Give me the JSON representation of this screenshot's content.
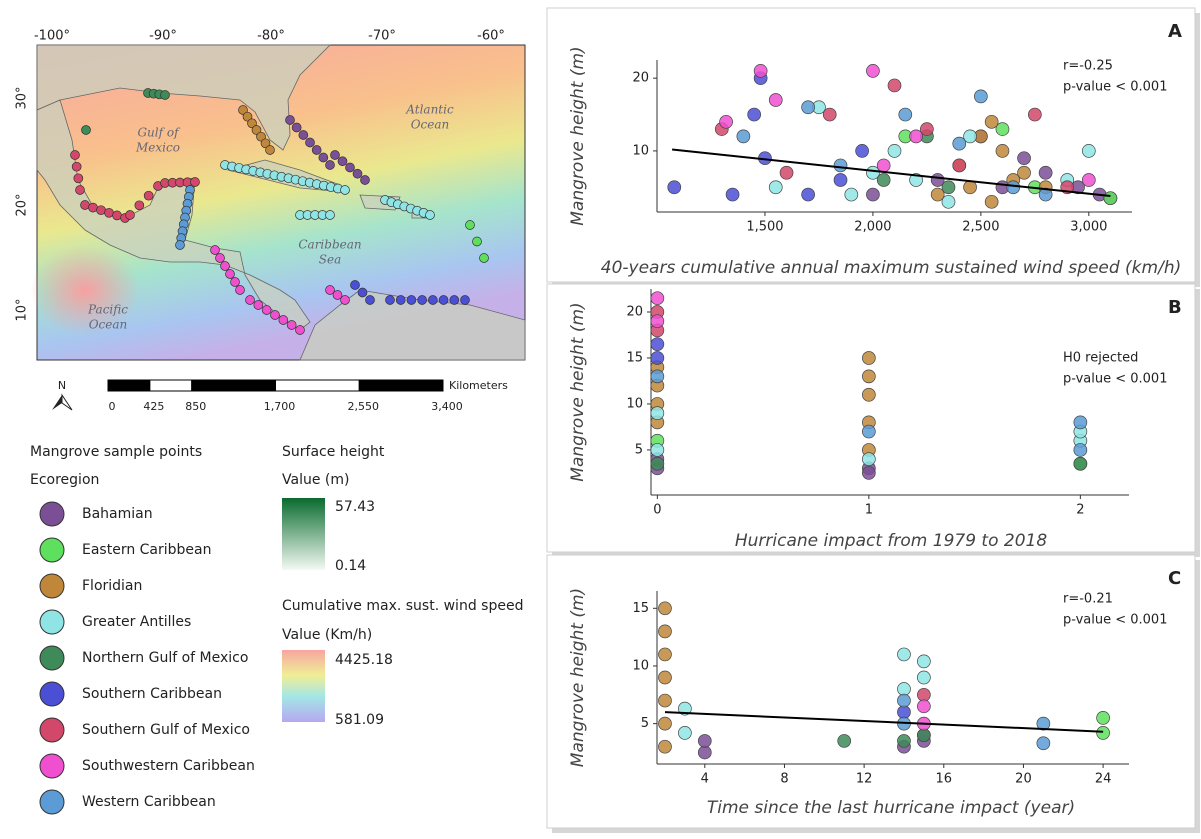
{
  "chart_data": [
    {
      "type": "scatter",
      "panel": "A",
      "xlabel": "40-years cumulative annual maximum sustained wind speed (km/h)",
      "ylabel": "Mangrove height (m)",
      "annotations": [
        "r=-0.25",
        "p-value < 0.001"
      ],
      "xlim": [
        1000,
        3200
      ],
      "ylim": [
        1.6,
        22.5
      ],
      "xticks": [
        {
          "value": 1500,
          "label": "1,500"
        },
        {
          "value": 2000,
          "label": "2,000"
        },
        {
          "value": 2500,
          "label": "2,500"
        },
        {
          "value": 3000,
          "label": "3,000"
        }
      ],
      "yticks": [
        10,
        20
      ],
      "series": [
        {
          "name": "Bahamian",
          "color": "#7b4f96",
          "x": [
            2000,
            2300,
            2600,
            2800,
            2950,
            3050,
            3100,
            2700,
            2500
          ],
          "values": [
            4,
            6,
            5,
            7,
            5,
            4,
            3.5,
            9,
            12
          ]
        },
        {
          "name": "Eastern Caribbean",
          "color": "#5ee05e",
          "x": [
            2150,
            2600,
            2750,
            3100
          ],
          "values": [
            12,
            13,
            5,
            3.5
          ]
        },
        {
          "name": "Floridian",
          "color": "#c0873a",
          "x": [
            2300,
            2400,
            2500,
            2550,
            2600,
            2650,
            2550,
            2450,
            2700,
            2800
          ],
          "values": [
            4,
            8,
            12,
            14,
            10,
            6,
            3,
            5,
            7,
            5
          ]
        },
        {
          "name": "Greater Antilles",
          "color": "#8fe5e5",
          "x": [
            1550,
            1750,
            1900,
            2000,
            2100,
            2200,
            2350,
            2450,
            2900,
            3000
          ],
          "values": [
            5,
            16,
            4,
            7,
            10,
            6,
            3,
            12,
            6,
            10
          ]
        },
        {
          "name": "Northern Gulf of Mexico",
          "color": "#3e8a58",
          "x": [
            2050,
            2250,
            2350
          ],
          "values": [
            6,
            12,
            5
          ]
        },
        {
          "name": "Southern Caribbean",
          "color": "#4b4fd6",
          "x": [
            1080,
            1350,
            1450,
            1480,
            1500,
            1700,
            1850,
            1950
          ],
          "values": [
            5,
            4,
            15,
            20,
            9,
            4,
            6,
            10
          ]
        },
        {
          "name": "Southern Gulf of Mexico",
          "color": "#d2476a",
          "x": [
            1300,
            1600,
            1800,
            2100,
            2250,
            2400,
            2750,
            2900
          ],
          "values": [
            13,
            7,
            15,
            19,
            13,
            8,
            15,
            5
          ]
        },
        {
          "name": "Southwestern Caribbean",
          "color": "#f050d0",
          "x": [
            1320,
            1480,
            1550,
            2000,
            2200,
            2050,
            3000
          ],
          "values": [
            14,
            21,
            17,
            21,
            12,
            8,
            6
          ]
        },
        {
          "name": "Western Caribbean",
          "color": "#5b9bd6",
          "x": [
            1400,
            1700,
            1850,
            2150,
            2400,
            2500,
            2650,
            2800
          ],
          "values": [
            12,
            16,
            8,
            15,
            11,
            17.5,
            5,
            4
          ]
        }
      ],
      "trend": {
        "x": [
          1070,
          3100
        ],
        "values": [
          10.2,
          3.8
        ]
      }
    },
    {
      "type": "scatter",
      "panel": "B",
      "xlabel": "Hurricane impact from 1979 to 2018",
      "ylabel": "Mangrove height (m)",
      "annotations": [
        "H0 rejected",
        "p-value < 0.001"
      ],
      "xlim": [
        -0.03,
        2.23
      ],
      "ylim": [
        0.1,
        22.5
      ],
      "xticks": [
        0,
        1,
        2
      ],
      "yticks": [
        5,
        10,
        15,
        20
      ],
      "series": [
        {
          "color": "#7b4f96",
          "x": [
            0,
            0,
            1,
            1
          ],
          "values": [
            3,
            4,
            3,
            2.5
          ]
        },
        {
          "color": "#5ee05e",
          "x": [
            0,
            2
          ],
          "values": [
            6,
            3.5
          ]
        },
        {
          "color": "#c0873a",
          "x": [
            0,
            0,
            0,
            0,
            1,
            1,
            1,
            1,
            1
          ],
          "values": [
            8,
            10,
            12,
            14,
            5,
            8,
            11,
            13,
            15
          ]
        },
        {
          "color": "#8fe5e5",
          "x": [
            0,
            0,
            1,
            2,
            2
          ],
          "values": [
            5,
            9,
            4,
            6,
            7
          ]
        },
        {
          "color": "#3e8a58",
          "x": [
            0,
            2
          ],
          "values": [
            3.5,
            3.5
          ]
        },
        {
          "color": "#4b4fd6",
          "x": [
            0,
            0
          ],
          "values": [
            15,
            16.5
          ]
        },
        {
          "color": "#d2476a",
          "x": [
            0,
            0
          ],
          "values": [
            18,
            20
          ]
        },
        {
          "color": "#f050d0",
          "x": [
            0,
            0
          ],
          "values": [
            21.5,
            19
          ]
        },
        {
          "color": "#5b9bd6",
          "x": [
            0,
            1,
            2,
            2
          ],
          "values": [
            13,
            7,
            8,
            5
          ]
        }
      ]
    },
    {
      "type": "scatter",
      "panel": "C",
      "xlabel": "Time since the last hurricane impact (year)",
      "ylabel": "Mangrove height (m)",
      "annotations": [
        "r=-0.21",
        "p-value < 0.001"
      ],
      "xlim": [
        1.6,
        25.3
      ],
      "ylim": [
        1.5,
        16.5
      ],
      "xticks": [
        4,
        8,
        12,
        16,
        20,
        24
      ],
      "yticks": [
        5,
        10,
        15
      ],
      "series": [
        {
          "color": "#7b4f96",
          "x": [
            4,
            4,
            14,
            15,
            15
          ],
          "values": [
            2.5,
            3.5,
            3,
            3.5,
            4
          ]
        },
        {
          "color": "#5ee05e",
          "x": [
            24,
            24
          ],
          "values": [
            5.5,
            4.2
          ]
        },
        {
          "color": "#c0873a",
          "x": [
            2,
            2,
            2,
            2,
            2,
            2,
            2
          ],
          "values": [
            3,
            5,
            7,
            9,
            11,
            13,
            15
          ]
        },
        {
          "color": "#8fe5e5",
          "x": [
            3,
            3,
            14,
            14,
            15,
            15
          ],
          "values": [
            6.3,
            4.2,
            8,
            11,
            10.4,
            9
          ]
        },
        {
          "color": "#3e8a58",
          "x": [
            11,
            14,
            15
          ],
          "values": [
            3.5,
            3.5,
            4
          ]
        },
        {
          "color": "#4b4fd6",
          "x": [
            14
          ],
          "values": [
            6
          ]
        },
        {
          "color": "#d2476a",
          "x": [
            15
          ],
          "values": [
            7.5
          ]
        },
        {
          "color": "#f050d0",
          "x": [
            15,
            15
          ],
          "values": [
            5,
            6.5
          ]
        },
        {
          "color": "#5b9bd6",
          "x": [
            14,
            14,
            21,
            21
          ],
          "values": [
            5,
            7,
            5,
            3.3
          ]
        }
      ],
      "trend": {
        "x": [
          2,
          24
        ],
        "values": [
          6,
          4.3
        ]
      }
    }
  ],
  "map": {
    "lon_ticks": [
      "-100°",
      "-90°",
      "-80°",
      "-70°",
      "-60°"
    ],
    "lat_ticks": [
      "30°",
      "20°",
      "10°"
    ],
    "places": [
      [
        "Gulf of",
        "Mexico"
      ],
      [
        "Atlantic",
        "Ocean"
      ],
      [
        "Caribbean",
        "Sea"
      ],
      [
        "Pacific",
        "Ocean"
      ]
    ],
    "north": "N",
    "scale": {
      "unit": "Kilometers",
      "ticks": [
        0,
        425,
        850,
        {
          "value": 1700,
          "label": "1,700"
        },
        {
          "value": 2550,
          "label": "2,550"
        },
        {
          "value": 3400,
          "label": "3,400"
        }
      ]
    }
  },
  "legend": {
    "title": "Mangrove sample points",
    "subtitle": "Ecoregion",
    "surface": {
      "title": "Surface height",
      "unit": "Value (m)",
      "max": 57.43,
      "min": 0.14
    },
    "wind": {
      "title": "Cumulative max. sust. wind speed",
      "unit": "Value (Km/h)",
      "max": 4425.18,
      "min": 581.09
    }
  }
}
